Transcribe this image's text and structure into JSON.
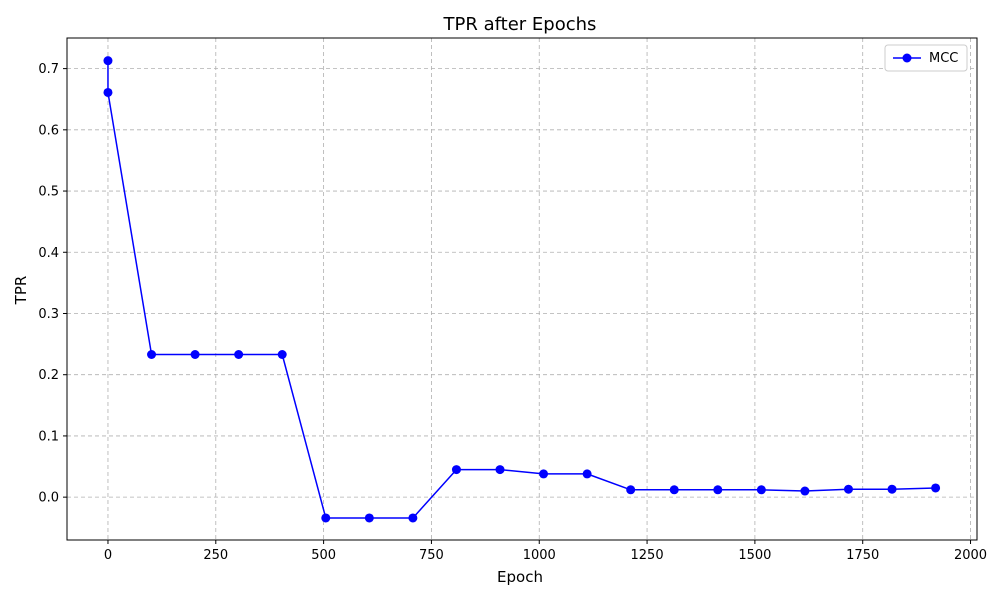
{
  "chart_data": {
    "type": "line",
    "title": "TPR after Epochs",
    "xlabel": "Epoch",
    "ylabel": "TPR",
    "xlim": [
      -95,
      2015
    ],
    "ylim": [
      -0.07,
      0.75
    ],
    "xticks": [
      0,
      250,
      500,
      750,
      1000,
      1250,
      1500,
      1750,
      2000
    ],
    "yticks": [
      0.0,
      0.1,
      0.2,
      0.3,
      0.4,
      0.5,
      0.6,
      0.7
    ],
    "xtick_labels": [
      "0",
      "250",
      "500",
      "750",
      "1000",
      "1250",
      "1500",
      "1750",
      "2000"
    ],
    "ytick_labels": [
      "0.0",
      "0.1",
      "0.2",
      "0.3",
      "0.4",
      "0.5",
      "0.6",
      "0.7"
    ],
    "grid": true,
    "legend_position": "top-right",
    "series": [
      {
        "name": "MCC",
        "color": "#0000ff",
        "marker": "circle",
        "x": [
          0,
          0,
          101,
          202,
          303,
          404,
          505,
          606,
          707,
          808,
          909,
          1010,
          1111,
          1212,
          1313,
          1414,
          1515,
          1616,
          1717,
          1818,
          1919
        ],
        "y": [
          0.713,
          0.661,
          0.233,
          0.233,
          0.233,
          0.233,
          -0.034,
          -0.034,
          -0.034,
          0.045,
          0.045,
          0.038,
          0.038,
          0.012,
          0.012,
          0.012,
          0.012,
          0.01,
          0.013,
          0.013,
          0.015
        ]
      }
    ]
  }
}
